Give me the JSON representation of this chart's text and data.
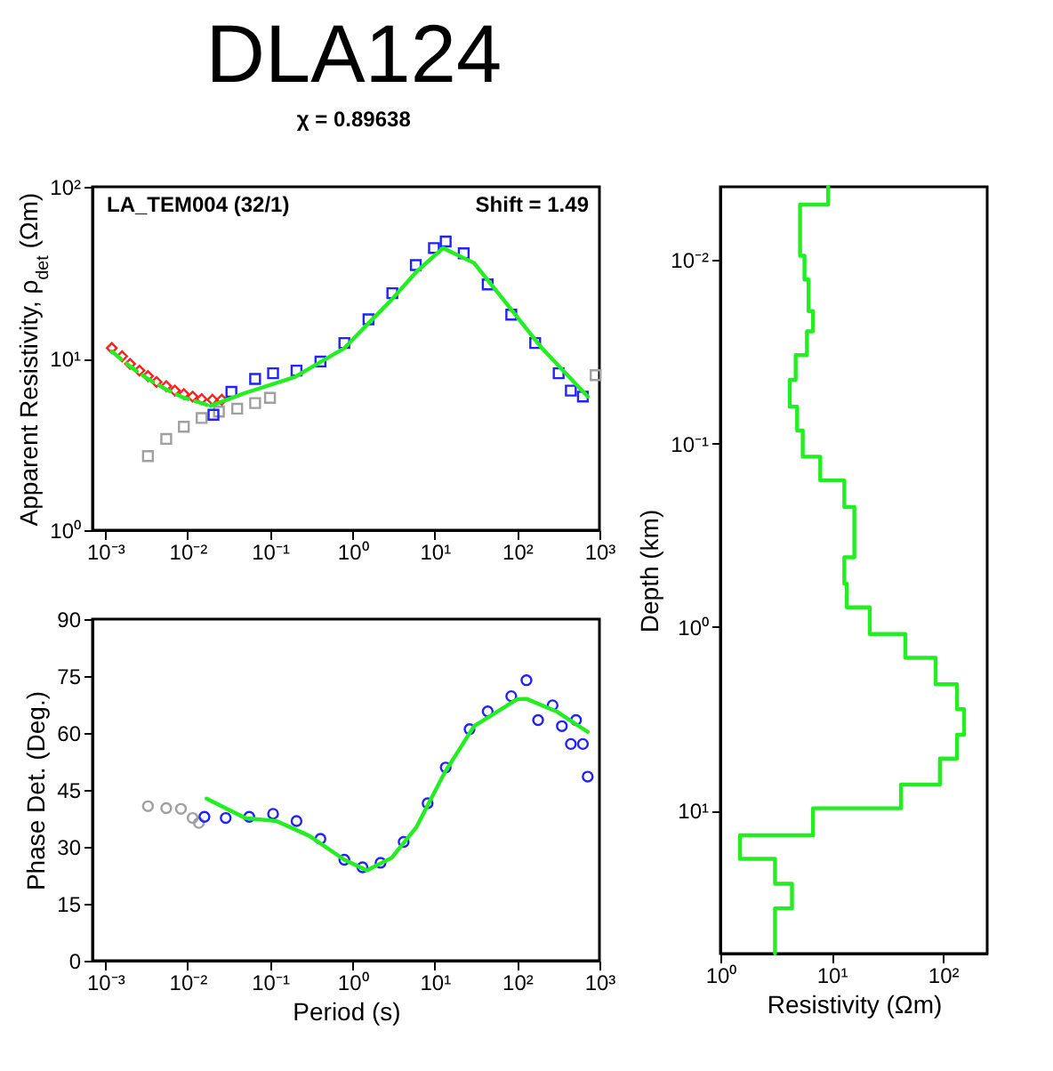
{
  "chart_data": [
    {
      "type": "scatter",
      "title": "DLA124",
      "subtitle": "χ = 0.89638",
      "ylabel": "Apparent Resistivity, ρ$_{det}$ (Ωm)",
      "annotations": [
        "LA_TEM004 (32/1)",
        "Shift = 1.49"
      ],
      "log": "xy",
      "xlim": [
        0.0007,
        1000
      ],
      "ylim": [
        1,
        100
      ],
      "xticks": [
        {
          "value": 0.001,
          "label": "10⁻³"
        },
        {
          "value": 0.01,
          "label": "10⁻²"
        },
        {
          "value": 0.1,
          "label": "10⁻¹"
        },
        {
          "value": 1,
          "label": "10⁰"
        },
        {
          "value": 10,
          "label": "10¹"
        },
        {
          "value": 100,
          "label": "10²"
        },
        {
          "value": 1000,
          "label": "10³"
        }
      ],
      "yticks": [
        {
          "value": 1,
          "label": "10⁰"
        },
        {
          "value": 10,
          "label": "10¹"
        },
        {
          "value": 100,
          "label": "10²"
        }
      ],
      "series": [
        {
          "marker": "square",
          "color": "#a0a0a0",
          "x": [
            0.0033,
            0.0055,
            0.009,
            0.0148,
            0.024,
            0.04,
            0.066,
            0.1,
            900
          ],
          "values": [
            2.7,
            3.4,
            4.0,
            4.5,
            4.9,
            5.1,
            5.5,
            5.9,
            8
          ]
        },
        {
          "marker": "diamond",
          "color": "#ff2020",
          "x": [
            0.0012,
            0.0016,
            0.002,
            0.0026,
            0.0033,
            0.0042,
            0.0055,
            0.007,
            0.009,
            0.0115,
            0.0148,
            0.02,
            0.026
          ],
          "values": [
            11.5,
            10.3,
            9.3,
            8.5,
            7.9,
            7.3,
            6.9,
            6.5,
            6.2,
            6.0,
            5.8,
            5.75,
            5.75
          ]
        },
        {
          "marker": "square",
          "color": "#2222ff",
          "x": [
            0.0206,
            0.034,
            0.066,
            0.109,
            0.21,
            0.41,
            0.8,
            1.57,
            3.06,
            5.9,
            9.8,
            13.6,
            22.5,
            44,
            85,
            166,
            320,
            450,
            630
          ],
          "values": [
            4.7,
            6.4,
            7.6,
            8.2,
            8.5,
            9.6,
            12.3,
            16.9,
            24,
            35,
            44,
            48,
            41,
            27,
            18,
            12.3,
            8.2,
            6.5,
            6.0
          ]
        },
        {
          "type": "line",
          "line_style": "dashed",
          "color": "#22ee22",
          "x": [
            0.0012,
            0.002,
            0.0033,
            0.0055,
            0.009,
            0.019
          ],
          "values": [
            11,
            9.0,
            7.6,
            6.6,
            5.9,
            5.3
          ]
        },
        {
          "type": "line",
          "line_style": "solid",
          "color": "#22ee22",
          "x": [
            0.019,
            0.05,
            0.2,
            0.8,
            3,
            6,
            12.6,
            30,
            80,
            200,
            720
          ],
          "values": [
            5.3,
            6.3,
            7.8,
            11.5,
            22,
            32,
            44,
            36,
            20,
            11.5,
            6.0
          ]
        }
      ]
    },
    {
      "type": "scatter",
      "xlabel": "Period (s)",
      "ylabel": "Phase Det. (Deg.)",
      "log": "x",
      "xlim": [
        0.0007,
        1000
      ],
      "ylim": [
        0,
        90
      ],
      "xticks": [
        {
          "value": 0.001,
          "label": "10⁻³"
        },
        {
          "value": 0.01,
          "label": "10⁻²"
        },
        {
          "value": 0.1,
          "label": "10⁻¹"
        },
        {
          "value": 1,
          "label": "10⁰"
        },
        {
          "value": 10,
          "label": "10¹"
        },
        {
          "value": 100,
          "label": "10²"
        },
        {
          "value": 1000,
          "label": "10³"
        }
      ],
      "yticks": [
        0,
        15,
        30,
        45,
        60,
        75,
        90
      ],
      "series": [
        {
          "marker": "circle",
          "color": "#a0a0a0",
          "x": [
            0.0033,
            0.0055,
            0.0083,
            0.0115,
            0.0137
          ],
          "values": [
            40.7,
            40.2,
            40,
            37.6,
            36.3
          ]
        },
        {
          "marker": "circle",
          "color": "#2222ff",
          "x": [
            0.016,
            0.029,
            0.056,
            0.109,
            0.21,
            0.41,
            0.8,
            1.33,
            2.2,
            4.2,
            8.2,
            13.6,
            26.5,
            44,
            85,
            130,
            180,
            270,
            350,
            450,
            520,
            630,
            720
          ],
          "values": [
            37.9,
            37.6,
            37.9,
            38.7,
            36.8,
            32.1,
            26.6,
            24.6,
            25.8,
            31.3,
            41.5,
            50.9,
            61.0,
            65.7,
            69.7,
            73.9,
            63.4,
            67.3,
            61.8,
            57.1,
            63.4,
            57.1,
            48.5
          ]
        },
        {
          "type": "line",
          "line_style": "solid",
          "color": "#22ee22",
          "x": [
            0.017,
            0.05,
            0.12,
            0.3,
            0.8,
            1.5,
            3,
            6,
            13,
            30,
            100,
            130,
            300,
            720
          ],
          "values": [
            42.7,
            37.6,
            36.8,
            32.9,
            26.6,
            23.8,
            27.1,
            35.2,
            49.3,
            61.8,
            68.9,
            69,
            65.7,
            60.3
          ]
        }
      ]
    },
    {
      "type": "line",
      "xlabel": "Resistivity (Ωm)",
      "ylabel": "Depth (km)",
      "log": "xy",
      "xlim": [
        1,
        250
      ],
      "ylim": [
        60,
        0.004
      ],
      "xticks": [
        {
          "value": 1,
          "label": "10⁰"
        },
        {
          "value": 10,
          "label": "10¹"
        },
        {
          "value": 100,
          "label": "10²"
        }
      ],
      "yticks": [
        {
          "value": 0.01,
          "label": "10⁻²"
        },
        {
          "value": 0.1,
          "label": "10⁻¹"
        },
        {
          "value": 1,
          "label": "10⁰"
        },
        {
          "value": 10,
          "label": "10¹"
        }
      ],
      "series": [
        {
          "line_style": "solid",
          "color": "#22ee22",
          "x": [
            9.3,
            9.3,
            5.2,
            5.2,
            5.7,
            5.7,
            6.2,
            6.2,
            6.8,
            6.8,
            6.0,
            6.0,
            4.75,
            4.75,
            4.2,
            4.2,
            4.9,
            4.9,
            5.5,
            5.5,
            7.9,
            7.9,
            13,
            13,
            16,
            16,
            13,
            13,
            13.7,
            13.7,
            22,
            22,
            46,
            46,
            86,
            86,
            134,
            134,
            155,
            155,
            134,
            134,
            94,
            94,
            42,
            42,
            6.8,
            6.8,
            1.5,
            1.5,
            3.1,
            3.1,
            4.4,
            4.4,
            3.1,
            3.1
          ],
          "values": [
            0.004,
            0.005,
            0.005,
            0.0095,
            0.0095,
            0.0128,
            0.0128,
            0.019,
            0.019,
            0.0245,
            0.0245,
            0.033,
            0.033,
            0.045,
            0.045,
            0.063,
            0.063,
            0.085,
            0.085,
            0.118,
            0.118,
            0.159,
            0.159,
            0.222,
            0.222,
            0.417,
            0.417,
            0.58,
            0.58,
            0.78,
            0.78,
            1.09,
            1.09,
            1.47,
            1.47,
            2.05,
            2.05,
            2.8,
            2.8,
            3.86,
            3.86,
            5.2,
            5.2,
            7.2,
            7.2,
            9.7,
            9.7,
            13.6,
            13.6,
            18.3,
            18.3,
            25,
            25,
            34,
            34,
            60
          ]
        }
      ]
    }
  ]
}
